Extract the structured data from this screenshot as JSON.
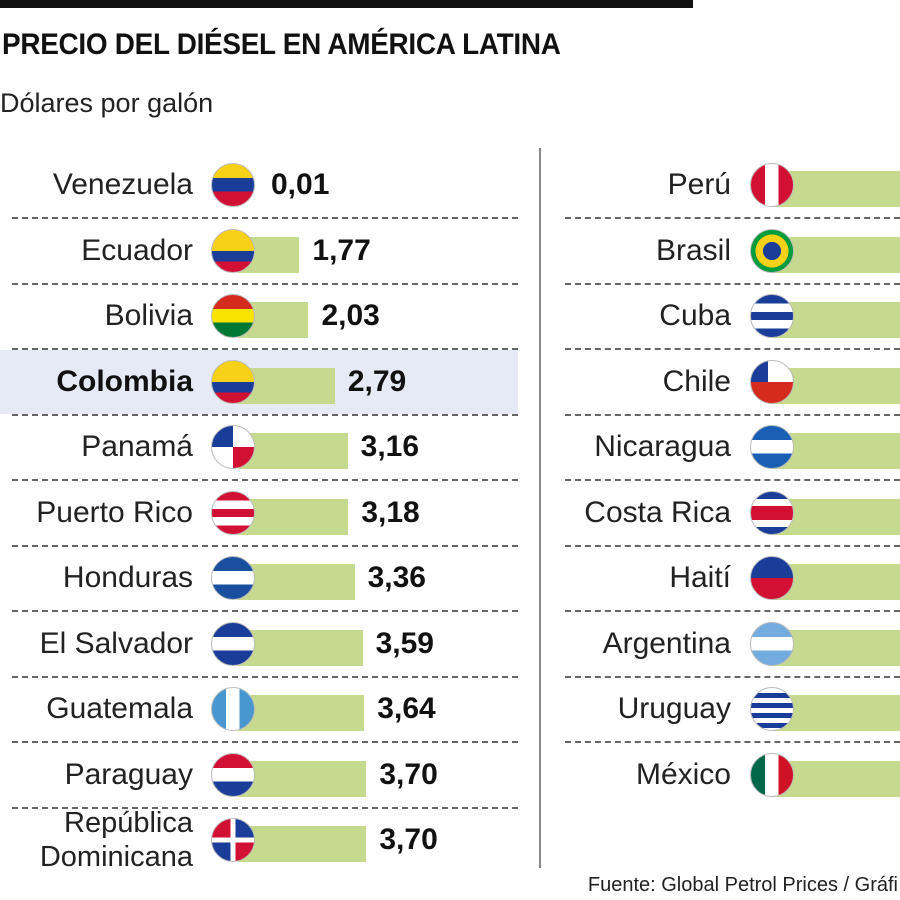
{
  "chart_data": {
    "type": "bar",
    "orientation": "horizontal",
    "title": "PRECIO DEL DIÉSEL EN AMÉRICA LATINA",
    "subtitle": "Dólares por galón",
    "source": "Fuente: Global Petrol Prices / Gráfi",
    "highlight": "Colombia",
    "bar_color": "#c6da8f",
    "highlight_bg": "#e6eaf4",
    "left_column": {
      "categories": [
        "Venezuela",
        "Ecuador",
        "Bolivia",
        "Colombia",
        "Panamá",
        "Puerto Rico",
        "Honduras",
        "El Salvador",
        "Guatemala",
        "Paraguay",
        "República Dominicana"
      ],
      "values": [
        0.01,
        1.77,
        2.03,
        2.79,
        3.16,
        3.18,
        3.36,
        3.59,
        3.64,
        3.7,
        3.7
      ],
      "value_labels": [
        "0,01",
        "1,77",
        "2,03",
        "2,79",
        "3,16",
        "3,18",
        "3,36",
        "3,59",
        "3,64",
        "3,70",
        "3,70"
      ]
    },
    "right_column": {
      "categories": [
        "Perú",
        "Brasil",
        "Cuba",
        "Chile",
        "Nicaragua",
        "Costa Rica",
        "Haití",
        "Argentina",
        "Uruguay",
        "México"
      ],
      "values": [
        null,
        null,
        null,
        null,
        null,
        null,
        null,
        null,
        null,
        null
      ],
      "note_cropped": true
    }
  }
}
